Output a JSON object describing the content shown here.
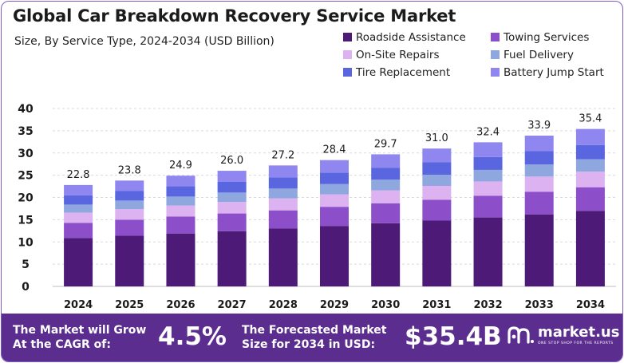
{
  "header": {
    "title": "Global Car Breakdown Recovery Service Market",
    "subtitle": "Size, By Service Type, 2024-2034 (USD Billion)"
  },
  "legend": [
    {
      "label": "Roadside Assistance",
      "color": "#4d1a78"
    },
    {
      "label": "Towing Services",
      "color": "#8c4fc9"
    },
    {
      "label": "On-Site Repairs",
      "color": "#dcb3f0"
    },
    {
      "label": "Fuel Delivery",
      "color": "#8ea7df"
    },
    {
      "label": "Tire Replacement",
      "color": "#5a66e0"
    },
    {
      "label": "Battery Jump Start",
      "color": "#8f86ef"
    }
  ],
  "chart_data": {
    "type": "bar",
    "stacked": true,
    "title": "Global Car Breakdown Recovery Service Market",
    "subtitle": "Size, By Service Type, 2024-2034 (USD Billion)",
    "xlabel": "",
    "ylabel": "",
    "ylim": [
      0,
      40
    ],
    "yticks": [
      0,
      5,
      10,
      15,
      20,
      25,
      30,
      35,
      40
    ],
    "grid": "horizontal dashed",
    "legend_position": "top-right",
    "categories": [
      "2024",
      "2025",
      "2026",
      "2027",
      "2028",
      "2029",
      "2030",
      "2031",
      "2032",
      "2033",
      "2034"
    ],
    "totals": [
      22.8,
      23.8,
      24.9,
      26.0,
      27.2,
      28.4,
      29.7,
      31.0,
      32.4,
      33.9,
      35.4
    ],
    "series": [
      {
        "name": "Roadside Assistance",
        "color": "#4d1a78",
        "values": [
          10.9,
          11.4,
          11.9,
          12.4,
          13.0,
          13.6,
          14.2,
          14.8,
          15.5,
          16.2,
          17.0
        ]
      },
      {
        "name": "Towing Services",
        "color": "#8c4fc9",
        "values": [
          3.4,
          3.6,
          3.8,
          4.0,
          4.1,
          4.3,
          4.5,
          4.7,
          4.9,
          5.1,
          5.3
        ]
      },
      {
        "name": "On-Site Repairs",
        "color": "#dcb3f0",
        "values": [
          2.3,
          2.4,
          2.5,
          2.6,
          2.7,
          2.8,
          2.9,
          3.1,
          3.2,
          3.4,
          3.5
        ]
      },
      {
        "name": "Fuel Delivery",
        "color": "#8ea7df",
        "values": [
          1.8,
          1.9,
          2.0,
          2.1,
          2.2,
          2.3,
          2.4,
          2.5,
          2.6,
          2.7,
          2.8
        ]
      },
      {
        "name": "Tire Replacement",
        "color": "#5a66e0",
        "values": [
          2.1,
          2.2,
          2.3,
          2.4,
          2.5,
          2.6,
          2.7,
          2.8,
          2.9,
          3.0,
          3.2
        ]
      },
      {
        "name": "Battery Jump Start",
        "color": "#8f86ef",
        "values": [
          2.3,
          2.3,
          2.4,
          2.5,
          2.7,
          2.8,
          3.0,
          3.1,
          3.3,
          3.5,
          3.6
        ]
      }
    ]
  },
  "footer": {
    "cagr_line1": "The Market will Grow",
    "cagr_line2": "At the CAGR of:",
    "cagr_value": "4.5%",
    "forecast_line1": "The Forecasted Market",
    "forecast_line2": "Size for 2034 in USD:",
    "forecast_value": "$35.4B",
    "brand_name": "market.us",
    "brand_tagline": "ONE STOP SHOP FOR THE REPORTS"
  }
}
